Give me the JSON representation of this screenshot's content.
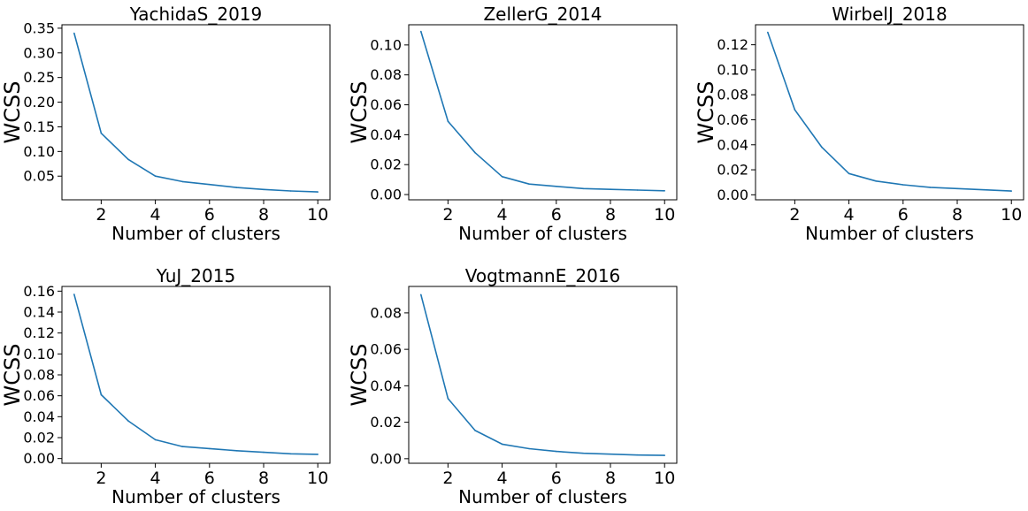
{
  "colors": {
    "series": "#1f77b4",
    "background": "#ffffff"
  },
  "chart_data": [
    {
      "type": "line",
      "title": "YachidaS_2019",
      "xlabel": "Number of clusters",
      "ylabel": "WCSS",
      "x": [
        1,
        2,
        3,
        4,
        5,
        6,
        7,
        8,
        9,
        10
      ],
      "xlim": [
        0.55,
        10.45
      ],
      "ylim": [
        0.002,
        0.357
      ],
      "xticks": [
        2,
        4,
        6,
        8,
        10
      ],
      "xtick_labels": [
        "2",
        "4",
        "6",
        "8",
        "10"
      ],
      "yticks": [
        0.05,
        0.1,
        0.15,
        0.2,
        0.25,
        0.3,
        0.35
      ],
      "ytick_labels": [
        "0.05",
        "0.10",
        "0.15",
        "0.20",
        "0.25",
        "0.30",
        "0.35"
      ],
      "series": [
        {
          "values": [
            0.34,
            0.137,
            0.084,
            0.05,
            0.039,
            0.033,
            0.027,
            0.023,
            0.02,
            0.018
          ]
        }
      ]
    },
    {
      "type": "line",
      "title": "ZellerG_2014",
      "xlabel": "Number of clusters",
      "ylabel": "WCSS",
      "x": [
        1,
        2,
        3,
        4,
        5,
        6,
        7,
        8,
        9,
        10
      ],
      "xlim": [
        0.55,
        10.45
      ],
      "ylim": [
        -0.0035,
        0.1135
      ],
      "xticks": [
        2,
        4,
        6,
        8,
        10
      ],
      "xtick_labels": [
        "2",
        "4",
        "6",
        "8",
        "10"
      ],
      "yticks": [
        0.0,
        0.02,
        0.04,
        0.06,
        0.08,
        0.1
      ],
      "ytick_labels": [
        "0.00",
        "0.02",
        "0.04",
        "0.06",
        "0.08",
        "0.10"
      ],
      "series": [
        {
          "values": [
            0.109,
            0.049,
            0.028,
            0.012,
            0.007,
            0.0055,
            0.004,
            0.0035,
            0.003,
            0.0025
          ]
        }
      ]
    },
    {
      "type": "line",
      "title": "WirbelJ_2018",
      "xlabel": "Number of clusters",
      "ylabel": "WCSS",
      "x": [
        1,
        2,
        3,
        4,
        5,
        6,
        7,
        8,
        9,
        10
      ],
      "xlim": [
        0.55,
        10.45
      ],
      "ylim": [
        -0.004,
        0.136
      ],
      "xticks": [
        2,
        4,
        6,
        8,
        10
      ],
      "xtick_labels": [
        "2",
        "4",
        "6",
        "8",
        "10"
      ],
      "yticks": [
        0.0,
        0.02,
        0.04,
        0.06,
        0.08,
        0.1,
        0.12
      ],
      "ytick_labels": [
        "0.00",
        "0.02",
        "0.04",
        "0.06",
        "0.08",
        "0.10",
        "0.12"
      ],
      "series": [
        {
          "values": [
            0.13,
            0.068,
            0.038,
            0.017,
            0.011,
            0.008,
            0.006,
            0.005,
            0.004,
            0.003
          ]
        }
      ]
    },
    {
      "type": "line",
      "title": "YuJ_2015",
      "xlabel": "Number of clusters",
      "ylabel": "WCSS",
      "x": [
        1,
        2,
        3,
        4,
        5,
        6,
        7,
        8,
        9,
        10
      ],
      "xlim": [
        0.55,
        10.45
      ],
      "ylim": [
        -0.0045,
        0.1645
      ],
      "xticks": [
        2,
        4,
        6,
        8,
        10
      ],
      "xtick_labels": [
        "2",
        "4",
        "6",
        "8",
        "10"
      ],
      "yticks": [
        0.0,
        0.02,
        0.04,
        0.06,
        0.08,
        0.1,
        0.12,
        0.14,
        0.16
      ],
      "ytick_labels": [
        "0.00",
        "0.02",
        "0.04",
        "0.06",
        "0.08",
        "0.10",
        "0.12",
        "0.14",
        "0.16"
      ],
      "series": [
        {
          "values": [
            0.157,
            0.061,
            0.036,
            0.018,
            0.0115,
            0.0095,
            0.0075,
            0.006,
            0.0045,
            0.004
          ]
        }
      ]
    },
    {
      "type": "line",
      "title": "VogtmannE_2016",
      "xlabel": "Number of clusters",
      "ylabel": "WCSS",
      "x": [
        1,
        2,
        3,
        4,
        5,
        6,
        7,
        8,
        9,
        10
      ],
      "xlim": [
        0.55,
        10.45
      ],
      "ylim": [
        -0.0025,
        0.0945
      ],
      "xticks": [
        2,
        4,
        6,
        8,
        10
      ],
      "xtick_labels": [
        "2",
        "4",
        "6",
        "8",
        "10"
      ],
      "yticks": [
        0.0,
        0.02,
        0.04,
        0.06,
        0.08
      ],
      "ytick_labels": [
        "0.00",
        "0.02",
        "0.04",
        "0.06",
        "0.08"
      ],
      "series": [
        {
          "values": [
            0.09,
            0.033,
            0.0155,
            0.008,
            0.0055,
            0.004,
            0.003,
            0.0025,
            0.002,
            0.0018
          ]
        }
      ]
    }
  ]
}
